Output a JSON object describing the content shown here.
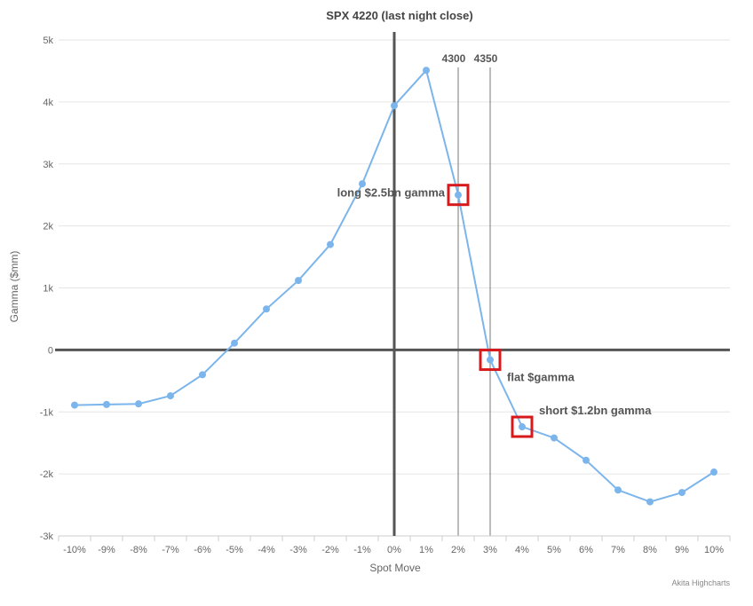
{
  "chart_data": {
    "type": "line",
    "title": "SPX 4220 (last night close)",
    "xlabel": "Spot Move",
    "ylabel": "Gamma ($mm)",
    "credit": "Akita Highcharts",
    "categories": [
      "-10%",
      "-9%",
      "-8%",
      "-7%",
      "-6%",
      "-5%",
      "-4%",
      "-3%",
      "-2%",
      "-1%",
      "0%",
      "1%",
      "2%",
      "3%",
      "4%",
      "5%",
      "6%",
      "7%",
      "8%",
      "9%",
      "10%"
    ],
    "series": [
      {
        "values": [
          -890,
          -880,
          -870,
          -740,
          -400,
          110,
          660,
          1120,
          1700,
          2680,
          3940,
          4510,
          2500,
          -160,
          -1240,
          -1420,
          -1780,
          -2260,
          -2450,
          -2300,
          -1970
        ]
      }
    ],
    "ylim": [
      -3000,
      5000
    ],
    "yticks": [
      {
        "value": 5000,
        "label": "5k"
      },
      {
        "value": 4000,
        "label": "4k"
      },
      {
        "value": 3000,
        "label": "3k"
      },
      {
        "value": 2000,
        "label": "2k"
      },
      {
        "value": 1000,
        "label": "1k"
      },
      {
        "value": 0,
        "label": "0"
      },
      {
        "value": -1000,
        "label": "-1k"
      },
      {
        "value": -2000,
        "label": "-2k"
      },
      {
        "value": -3000,
        "label": "-3k"
      }
    ],
    "vertical_lines": [
      {
        "category": "2%",
        "label": "4300"
      },
      {
        "category": "3%",
        "label": "4350"
      }
    ],
    "annotations": [
      {
        "category": "2%",
        "value": 2500,
        "text": "long $2.5bn gamma",
        "text_side": "left"
      },
      {
        "category": "3%",
        "value": -160,
        "text": "flat $gamma",
        "text_side": "right"
      },
      {
        "category": "4%",
        "value": -1240,
        "text": "short $1.2bn gamma",
        "text_side": "right"
      }
    ],
    "grid": true,
    "line_color": "#7cb5ec",
    "axis_color": "#555555",
    "highlight_color": "#d7191c",
    "grid_color": "#e6e6e6"
  }
}
